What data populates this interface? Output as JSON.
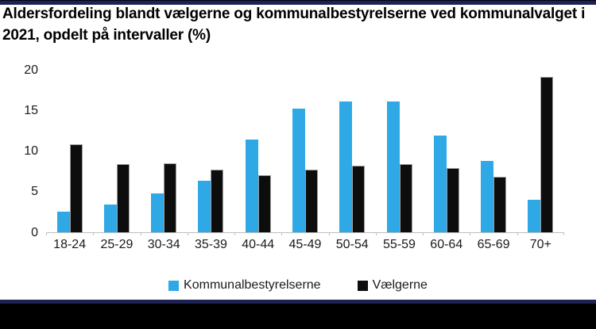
{
  "header": {
    "title_lines": [
      "Aldersfordeling blandt vælgerne og kommunalbestyrelserne ved kommunalvalget i",
      "2021, opdelt på intervaller (%)"
    ]
  },
  "chart_data": {
    "type": "bar",
    "title": "Aldersfordeling blandt vælgerne og kommunalbestyrelserne ved kommunalvalget i 2021, opdelt på intervaller (%)",
    "categories": [
      "18-24",
      "25-29",
      "30-34",
      "35-39",
      "40-44",
      "45-49",
      "50-54",
      "55-59",
      "60-64",
      "65-69",
      "70+"
    ],
    "series": [
      {
        "name": "Kommunalbestyrelserne",
        "color": "#2fa9e5",
        "values": [
          2.5,
          3.4,
          4.8,
          6.3,
          11.4,
          15.2,
          16.1,
          16.1,
          11.9,
          8.8,
          4.0
        ]
      },
      {
        "name": "Vælgerne",
        "color": "#0d0d0d",
        "values": [
          10.8,
          8.4,
          8.5,
          7.7,
          7.0,
          7.7,
          8.2,
          8.4,
          7.9,
          6.8,
          19.1
        ]
      }
    ],
    "xlabel": "",
    "ylabel": "",
    "ylim": [
      0,
      20
    ],
    "yticks": [
      0,
      5,
      10,
      15,
      20
    ],
    "grid": false,
    "legend_position": "bottom"
  },
  "colors": {
    "accent_blue": "#2fa9e5",
    "bar_black": "#0d0d0d",
    "axis": "#bfbfbf",
    "frame_navy": "#1e2253",
    "frame_black": "#000000"
  }
}
